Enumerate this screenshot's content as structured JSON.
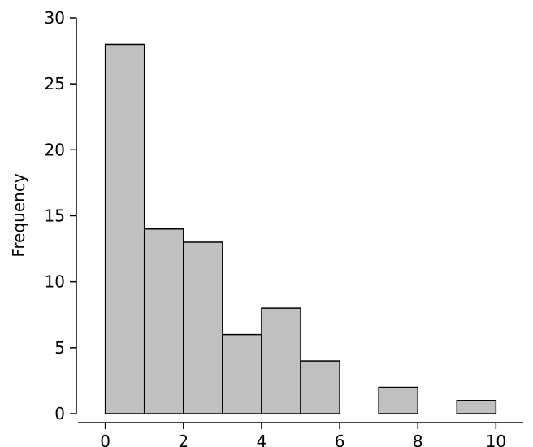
{
  "chart_data": {
    "type": "bar",
    "subtype": "histogram",
    "title": "",
    "xlabel": "",
    "ylabel": "Frequency",
    "bin_width": 1,
    "bins": [
      {
        "start": 0,
        "end": 1,
        "value": 28
      },
      {
        "start": 1,
        "end": 2,
        "value": 14
      },
      {
        "start": 2,
        "end": 3,
        "value": 13
      },
      {
        "start": 3,
        "end": 4,
        "value": 6
      },
      {
        "start": 4,
        "end": 5,
        "value": 8
      },
      {
        "start": 5,
        "end": 6,
        "value": 4
      },
      {
        "start": 6,
        "end": 7,
        "value": 0
      },
      {
        "start": 7,
        "end": 8,
        "value": 2
      },
      {
        "start": 8,
        "end": 9,
        "value": 0
      },
      {
        "start": 9,
        "end": 10,
        "value": 1
      }
    ],
    "xlim": [
      -0.7,
      10.7
    ],
    "ylim": [
      0,
      30
    ],
    "x_ticks": [
      "0",
      "2",
      "4",
      "6",
      "8",
      "10"
    ],
    "y_ticks": [
      "0",
      "5",
      "10",
      "15",
      "20",
      "25",
      "30"
    ],
    "grid": false,
    "legend": "none",
    "bar_color": "#c0c0c0",
    "edge_color": "#000000"
  }
}
